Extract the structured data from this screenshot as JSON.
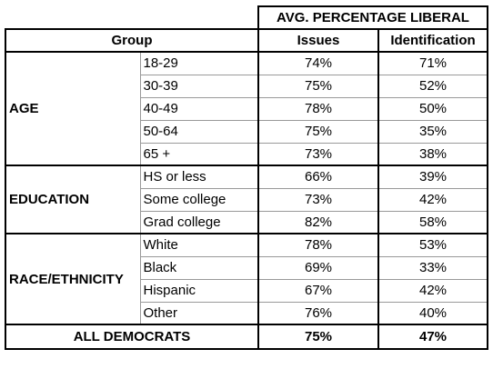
{
  "header": {
    "title": "AVG. PERCENTAGE LIBERAL",
    "group": "Group",
    "issues": "Issues",
    "identification": "Identification"
  },
  "groups": [
    {
      "label": "AGE",
      "rows": [
        {
          "subgroup": "18-29",
          "issues": "74%",
          "identification": "71%"
        },
        {
          "subgroup": "30-39",
          "issues": "75%",
          "identification": "52%"
        },
        {
          "subgroup": "40-49",
          "issues": "78%",
          "identification": "50%"
        },
        {
          "subgroup": "50-64",
          "issues": "75%",
          "identification": "35%"
        },
        {
          "subgroup": "65 +",
          "issues": "73%",
          "identification": "38%"
        }
      ]
    },
    {
      "label": "EDUCATION",
      "rows": [
        {
          "subgroup": "HS or less",
          "issues": "66%",
          "identification": "39%"
        },
        {
          "subgroup": "Some college",
          "issues": "73%",
          "identification": "42%"
        },
        {
          "subgroup": "Grad college",
          "issues": "82%",
          "identification": "58%"
        }
      ]
    },
    {
      "label": "RACE/ETHNICITY",
      "rows": [
        {
          "subgroup": "White",
          "issues": "78%",
          "identification": "53%"
        },
        {
          "subgroup": "Black",
          "issues": "69%",
          "identification": "33%"
        },
        {
          "subgroup": "Hispanic",
          "issues": "67%",
          "identification": "42%"
        },
        {
          "subgroup": "Other",
          "issues": "76%",
          "identification": "40%"
        }
      ]
    }
  ],
  "total": {
    "label": "ALL DEMOCRATS",
    "issues": "75%",
    "identification": "47%"
  }
}
